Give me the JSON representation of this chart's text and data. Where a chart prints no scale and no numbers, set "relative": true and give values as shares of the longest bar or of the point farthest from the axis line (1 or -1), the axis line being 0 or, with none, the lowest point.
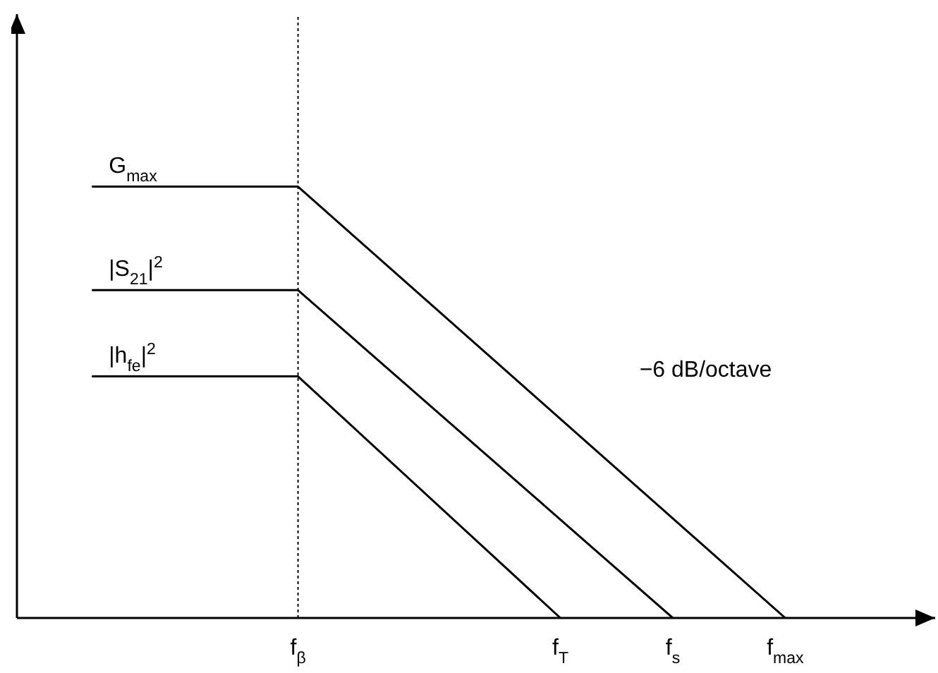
{
  "chart_data": {
    "type": "line",
    "relative": true,
    "categories": [
      null,
      null,
      null,
      null,
      null,
      null,
      null,
      null,
      null,
      null,
      null,
      null,
      null,
      null,
      null,
      "f$_{β}$",
      null,
      null,
      null,
      null,
      null,
      null,
      null,
      null,
      null,
      null,
      null,
      null,
      null,
      "f$_{T}$",
      null,
      null,
      null,
      null,
      null,
      "f$_{s}$",
      null,
      null,
      null,
      null,
      null,
      "f$_{max}$",
      null,
      null,
      null,
      null,
      null,
      null,
      null,
      null
    ],
    "series": [
      {
        "name": "G$_{max}$",
        "color": "#000000",
        "values": [
          null,
          null,
          null,
          null,
          1,
          null,
          null,
          null,
          null,
          null,
          null,
          null,
          null,
          null,
          null,
          1,
          null,
          null,
          null,
          null,
          null,
          null,
          null,
          null,
          null,
          null,
          null,
          null,
          null,
          null,
          null,
          null,
          null,
          null,
          null,
          null,
          null,
          null,
          null,
          null,
          null,
          0,
          null,
          null,
          null,
          null,
          null,
          null,
          null,
          null
        ]
      },
      {
        "name": "|S$_{21}$|$^{2}$",
        "color": "#000000",
        "values": [
          null,
          null,
          null,
          null,
          0.76,
          null,
          null,
          null,
          null,
          null,
          null,
          null,
          null,
          null,
          null,
          0.76,
          null,
          null,
          null,
          null,
          null,
          null,
          null,
          null,
          null,
          null,
          null,
          null,
          null,
          null,
          null,
          null,
          null,
          null,
          null,
          0,
          null,
          null,
          null,
          null,
          null,
          null,
          null,
          null,
          null,
          null,
          null,
          null,
          null,
          null
        ]
      },
      {
        "name": "|h$_{fe}$|$^{2}$",
        "color": "#000000",
        "values": [
          null,
          null,
          null,
          null,
          0.56,
          null,
          null,
          null,
          null,
          null,
          null,
          null,
          null,
          null,
          null,
          0.56,
          null,
          null,
          null,
          null,
          null,
          null,
          null,
          null,
          null,
          null,
          null,
          null,
          null,
          0,
          null,
          null,
          null,
          null,
          null,
          null,
          null,
          null,
          null,
          null,
          null,
          null,
          null,
          null,
          null,
          null,
          null,
          null,
          null,
          null
        ]
      }
    ],
    "ref_lines": [
      {
        "axis": "x",
        "value": "f$_{β}$",
        "color": "#000000",
        "line_style": "dotted"
      }
    ],
    "annotations": [
      "−6 dB/octave"
    ],
    "grid": false,
    "legend": false,
    "marker": "none",
    "line_style": "solid"
  }
}
